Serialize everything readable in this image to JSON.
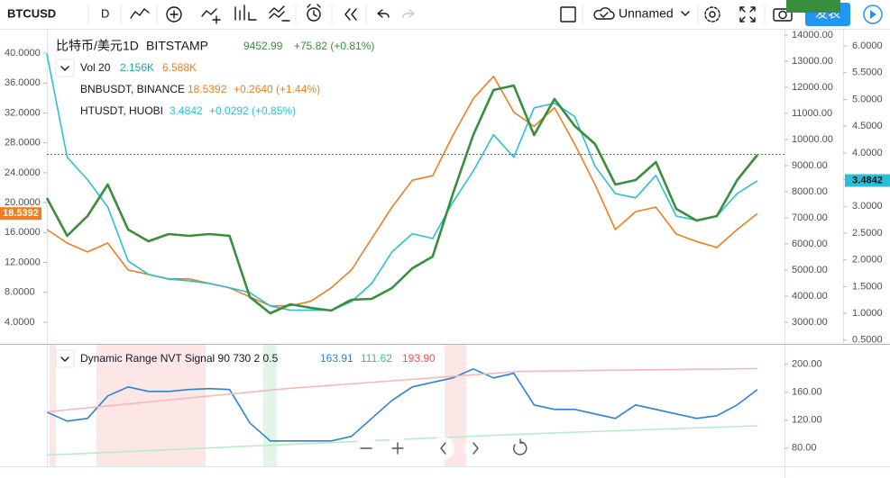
{
  "toolbar": {
    "symbol": "BTCUSD",
    "interval": "D",
    "layout_name": "Unnamed",
    "publish": "发表"
  },
  "chart_data": [
    {
      "type": "line",
      "title": "比特币/美元",
      "interval": "1D",
      "exchange": "BITSTAMP",
      "last": 9452.99,
      "change": "+75.82 (+0.81%)",
      "volume": {
        "label": "Vol 20",
        "values": [
          "2.156K",
          "6.588K"
        ]
      },
      "ylim": [
        1.11,
        43.25
      ],
      "yticks": [
        {
          "value": 4,
          "label": "4.0000"
        },
        {
          "value": 8,
          "label": "8.0000"
        },
        {
          "value": 12,
          "label": "12.0000"
        },
        {
          "value": 16,
          "label": "16.0000"
        },
        {
          "value": 20,
          "label": "20.0000"
        },
        {
          "value": 24,
          "label": "24.0000"
        },
        {
          "value": 28,
          "label": "28.0000"
        },
        {
          "value": 32,
          "label": "32.0000"
        },
        {
          "value": 36,
          "label": "36.0000"
        },
        {
          "value": 40,
          "label": "40.0000"
        }
      ],
      "y2lim": [
        2172,
        14241
      ],
      "y2ticks": [
        {
          "value": 3000,
          "label": "3000.00"
        },
        {
          "value": 4000,
          "label": "4000.00"
        },
        {
          "value": 5000,
          "label": "5000.00"
        },
        {
          "value": 6000,
          "label": "6000.00"
        },
        {
          "value": 7000,
          "label": "7000.00"
        },
        {
          "value": 8000,
          "label": "8000.00"
        },
        {
          "value": 9000,
          "label": "9000.00"
        },
        {
          "value": 10000,
          "label": "10000.00"
        },
        {
          "value": 11000,
          "label": "11000.00"
        },
        {
          "value": 12000,
          "label": "12000.00"
        },
        {
          "value": 13000,
          "label": "13000.00"
        },
        {
          "value": 14000,
          "label": "14000.00"
        }
      ],
      "y3lim": [
        0.43,
        6.32
      ],
      "y3ticks": [
        {
          "value": 0.5,
          "label": "0.5000"
        },
        {
          "value": 1,
          "label": "1.0000"
        },
        {
          "value": 1.5,
          "label": "1.5000"
        },
        {
          "value": 2,
          "label": "2.0000"
        },
        {
          "value": 2.5,
          "label": "2.5000"
        },
        {
          "value": 3,
          "label": "3.0000"
        },
        {
          "value": 3.5,
          "label": "3.5000"
        },
        {
          "value": 4,
          "label": "4.0000"
        },
        {
          "value": 4.5,
          "label": "4.5000"
        },
        {
          "value": 5,
          "label": "5.0000"
        },
        {
          "value": 5.5,
          "label": "5.5000"
        },
        {
          "value": 6,
          "label": "6.0000"
        }
      ],
      "series": [
        {
          "name": "BNBUSDT, BINANCE",
          "color": "#ef7d22",
          "axis": "y",
          "last": 18.5392,
          "change": "+0.2640 (+1.44%)",
          "values": [
            16.4,
            14.6,
            13.4,
            14.6,
            11.0,
            10.4,
            9.8,
            9.8,
            9.2,
            8.6,
            7.4,
            6.2,
            6.2,
            6.8,
            8.6,
            11.0,
            15.2,
            19.4,
            23.0,
            23.6,
            29.0,
            33.9,
            36.9,
            32.1,
            30.2,
            32.7,
            27.8,
            22.4,
            16.4,
            18.8,
            19.4,
            15.8,
            14.8,
            14.0,
            16.4,
            18.54
          ]
        },
        {
          "name": "HTUSDT, HUOBI",
          "color": "#2bbfd6",
          "axis": "y3",
          "last": 3.4842,
          "change": "+0.0292 (+0.85%)",
          "values": [
            5.85,
            3.92,
            3.5,
            2.99,
            1.98,
            1.73,
            1.64,
            1.61,
            1.56,
            1.48,
            1.39,
            1.14,
            1.06,
            1.06,
            1.06,
            1.22,
            1.56,
            2.15,
            2.49,
            2.4,
            3.08,
            3.66,
            4.34,
            3.92,
            4.84,
            4.93,
            4.68,
            3.75,
            3.24,
            3.16,
            3.58,
            2.82,
            2.74,
            2.82,
            3.24,
            3.48
          ]
        },
        {
          "color": "#388e3c",
          "axis": "y2",
          "values": [
            7758,
            6310,
            7069,
            8276,
            6552,
            6103,
            6379,
            6310,
            6379,
            6310,
            3966,
            3345,
            3690,
            3552,
            3448,
            3862,
            3897,
            4310,
            5069,
            5517,
            7931,
            10172,
            11896,
            12069,
            10172,
            11552,
            10517,
            9827,
            8276,
            8448,
            9138,
            7345,
            6896,
            7069,
            8448,
            9414
          ]
        }
      ]
    },
    {
      "type": "line",
      "title": "Dynamic Range NVT Signal 90 730 2 0.5",
      "ylim": [
        54,
        228
      ],
      "yticks": [
        {
          "value": 80,
          "label": "80.00"
        },
        {
          "value": 120,
          "label": "120.00"
        },
        {
          "value": 160,
          "label": "160.00"
        },
        {
          "value": 200,
          "label": "200.00"
        }
      ],
      "series": [
        {
          "color": "#2f80d9",
          "last": "163.91",
          "values": [
            131.6,
            118.7,
            122.6,
            154.8,
            167.7,
            161.3,
            161.3,
            163.9,
            165.2,
            163.9,
            116.1,
            90.3,
            90.3,
            90.3,
            90.3,
            96.8,
            122.6,
            148.4,
            167.7,
            174.2,
            180.6,
            193.5,
            180.6,
            187.1,
            141.9,
            135.5,
            135.5,
            129,
            122.6,
            141.9,
            135.5,
            129,
            122.6,
            126.5,
            141.9,
            163.9
          ]
        },
        {
          "color": "#b8ecc9",
          "last": "111.62",
          "values": [
            70,
            85,
            100,
            112
          ]
        },
        {
          "color": "#f6b8b8",
          "last": "193.90",
          "values": [
            132,
            165,
            190,
            194
          ]
        }
      ]
    }
  ]
}
